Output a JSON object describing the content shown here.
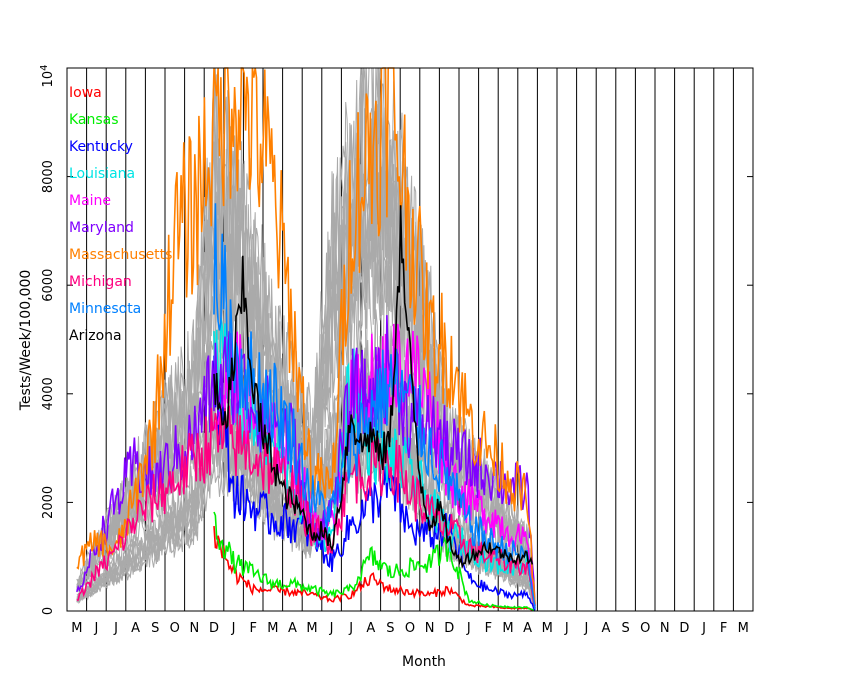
{
  "chart_data": {
    "type": "line",
    "title": "",
    "xlabel": "Month",
    "ylabel": "Tests/Week/100,000",
    "ylim": [
      0,
      10000
    ],
    "y_ticks": [
      0,
      2000,
      4000,
      6000,
      8000
    ],
    "y_top_label": "10",
    "y_top_exponent": "4",
    "x_tick_labels": [
      "M",
      "J",
      "J",
      "A",
      "S",
      "O",
      "N",
      "D",
      "J",
      "F",
      "M",
      "A",
      "M",
      "J",
      "J",
      "A",
      "S",
      "O",
      "N",
      "D",
      "J",
      "F",
      "M",
      "A",
      "M",
      "J",
      "J",
      "A",
      "S",
      "O",
      "N",
      "D",
      "J",
      "F",
      "M"
    ],
    "grid": "vertical lines at month boundaries",
    "legend_position": "top-left",
    "colors": {
      "Iowa": "#ff0000",
      "Kansas": "#00ee00",
      "Kentucky": "#0000ff",
      "Louisiana": "#00e5e5",
      "Maine": "#ff00ff",
      "Maryland": "#8000ff",
      "Massachusetts": "#ff8000",
      "Michigan": "#ff0080",
      "Minnesota": "#0080ff",
      "Arizona": "#000000",
      "other_states": "#aaaaaa"
    },
    "series": [
      {
        "name": "Iowa",
        "x": [
          7,
          8,
          9,
          10,
          11,
          12,
          13,
          14,
          15,
          16,
          17,
          18,
          19,
          20,
          21,
          22,
          23,
          23.4
        ],
        "values": [
          1400,
          700,
          400,
          380,
          350,
          300,
          200,
          300,
          600,
          400,
          350,
          300,
          400,
          100,
          80,
          50,
          50,
          0
        ]
      },
      {
        "name": "Kansas",
        "x": [
          7,
          8,
          9,
          10,
          11,
          12,
          13,
          14,
          15,
          16,
          17,
          18,
          19,
          20,
          21,
          22,
          23,
          23.4
        ],
        "values": [
          1600,
          900,
          700,
          500,
          500,
          400,
          300,
          400,
          1000,
          700,
          800,
          900,
          1200,
          200,
          100,
          80,
          60,
          0
        ]
      },
      {
        "name": "Kentucky",
        "x": [
          7,
          8,
          9,
          10,
          11,
          12,
          13,
          14,
          15,
          16,
          17,
          18,
          19,
          20,
          21,
          22,
          23,
          23.4
        ],
        "values": [
          4500,
          2200,
          1900,
          1700,
          1600,
          1400,
          900,
          1600,
          2000,
          2300,
          1500,
          1400,
          1500,
          600,
          400,
          300,
          300,
          0
        ]
      },
      {
        "name": "Louisiana",
        "x": [
          7,
          8,
          9,
          10,
          11,
          12,
          13,
          14,
          15,
          16,
          17,
          18,
          19,
          20,
          21,
          22,
          23,
          23.4
        ],
        "values": [
          5000,
          3800,
          3400,
          3000,
          2400,
          1500,
          1300,
          4500,
          3000,
          2800,
          2600,
          2000,
          1400,
          1200,
          900,
          800,
          900,
          0
        ]
      },
      {
        "name": "Maine",
        "x": [
          7,
          8,
          9,
          10,
          11,
          12,
          13,
          14,
          15,
          16,
          17,
          18,
          19,
          20,
          21,
          22,
          23,
          23.4
        ],
        "values": [
          3500,
          4500,
          3500,
          3200,
          2800,
          1800,
          1500,
          3800,
          4200,
          4400,
          4600,
          3800,
          2500,
          2000,
          1800,
          1500,
          1200,
          0
        ]
      },
      {
        "name": "Maryland",
        "x": [
          0,
          1,
          2,
          3,
          4,
          5,
          6,
          7,
          8,
          9,
          10,
          11,
          12,
          13,
          14,
          15,
          16,
          17,
          18,
          19,
          20,
          21,
          22,
          23,
          23.4
        ],
        "values": [
          300,
          1200,
          2000,
          2700,
          2400,
          2800,
          3200,
          4200,
          4400,
          3800,
          3500,
          3200,
          1400,
          1800,
          4000,
          3900,
          4600,
          3500,
          3400,
          3000,
          2700,
          2600,
          2300,
          2200,
          0
        ]
      },
      {
        "name": "Massachusetts",
        "x": [
          0,
          1,
          2,
          3,
          4,
          5,
          6,
          7,
          8,
          9,
          10,
          11,
          12,
          13,
          14,
          15,
          16,
          17,
          18,
          19,
          20,
          21,
          22,
          23,
          23.4
        ],
        "values": [
          900,
          1300,
          1100,
          2100,
          3500,
          6800,
          7400,
          9000,
          9800,
          9200,
          7800,
          5200,
          2500,
          2200,
          7500,
          8500,
          9500,
          7200,
          5000,
          4800,
          3500,
          3000,
          2500,
          2000,
          0
        ]
      },
      {
        "name": "Michigan",
        "x": [
          0,
          1,
          2,
          3,
          4,
          5,
          6,
          7,
          8,
          9,
          10,
          11,
          12,
          13,
          14,
          15,
          16,
          17,
          18,
          19,
          20,
          21,
          22,
          23,
          23.4
        ],
        "values": [
          200,
          700,
          1100,
          1700,
          2100,
          2400,
          2800,
          3200,
          3100,
          2900,
          2600,
          2300,
          1500,
          1300,
          2500,
          2600,
          2800,
          2200,
          1800,
          1500,
          1200,
          1000,
          900,
          800,
          0
        ]
      },
      {
        "name": "Minnesota",
        "x": [
          7,
          8,
          9,
          10,
          11,
          12,
          13,
          14,
          15,
          16,
          17,
          18,
          19,
          20,
          21,
          22,
          23,
          23.4
        ],
        "values": [
          6500,
          4800,
          4200,
          3900,
          3200,
          2100,
          1800,
          3000,
          3700,
          4200,
          3800,
          3000,
          2400,
          1600,
          1300,
          1100,
          1000,
          0
        ]
      },
      {
        "name": "Arizona",
        "x": [
          7,
          7.5,
          8,
          8.5,
          9,
          9.5,
          10,
          10.5,
          11,
          11.5,
          12,
          12.5,
          13,
          13.5,
          14,
          14.5,
          15,
          15.5,
          16,
          16.5,
          17,
          17.5,
          18,
          18.5,
          19,
          19.5,
          20,
          20.5,
          21,
          21.5,
          22,
          22.5,
          23,
          23.3
        ],
        "values": [
          4200,
          3200,
          4600,
          5900,
          4200,
          3200,
          2800,
          2200,
          2000,
          1800,
          1400,
          1500,
          1200,
          2200,
          3700,
          3000,
          3300,
          2800,
          3200,
          7000,
          4500,
          2500,
          1600,
          1900,
          1300,
          900,
          1000,
          1100,
          1200,
          1100,
          1000,
          1000,
          1000,
          800
        ]
      }
    ]
  }
}
